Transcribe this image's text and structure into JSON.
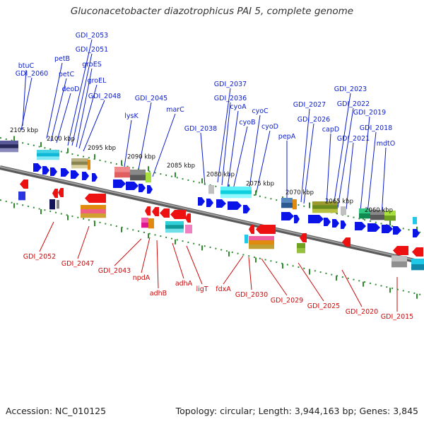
{
  "title": "Gluconacetobacter diazotrophicus PAI 5, complete genome",
  "footer": {
    "accession": "Accession: NC_010125",
    "summary": "Topology: circular; Length: 3,944,163 bp; Genes: 3,845"
  },
  "colors": {
    "top_label": "#0a1ccc",
    "bottom_label": "#cc0a0a",
    "forward_gene": "#0a14e6",
    "reverse_gene": "#ee1111",
    "backbone": "#777777",
    "ruler_tick": "#2e8b2e"
  },
  "kbp_ticks": [
    "2105 kbp",
    "2100 kbp",
    "2095 kbp",
    "2090 kbp",
    "2085 kbp",
    "2080 kbp",
    "2075 kbp",
    "2070 kbp",
    "2065 kbp",
    "2060 kbp"
  ],
  "top_labels": [
    "btuC",
    "GDI_2060",
    "petB",
    "petC",
    "deoD",
    "GDI_2053",
    "GDI_2051",
    "groES",
    "groEL",
    "GDI_2048",
    "GDI_2045",
    "lysK",
    "marC",
    "GDI_2038",
    "GDI_2037",
    "GDI_2036",
    "cyoA",
    "cyoB",
    "cyoC",
    "cyoD",
    "pepA",
    "GDI_2027",
    "GDI_2026",
    "capD",
    "GDI_2023",
    "GDI_2022",
    "GDI_2021",
    "GDI_2019",
    "GDI_2018",
    "mdtO"
  ],
  "bottom_labels": [
    "GDI_2052",
    "GDI_2047",
    "GDI_2043",
    "npdA",
    "adhB",
    "adhA",
    "ligT",
    "fdxA",
    "GDI_2030",
    "GDI_2029",
    "GDI_2025",
    "GDI_2020",
    "GDI_2015"
  ]
}
